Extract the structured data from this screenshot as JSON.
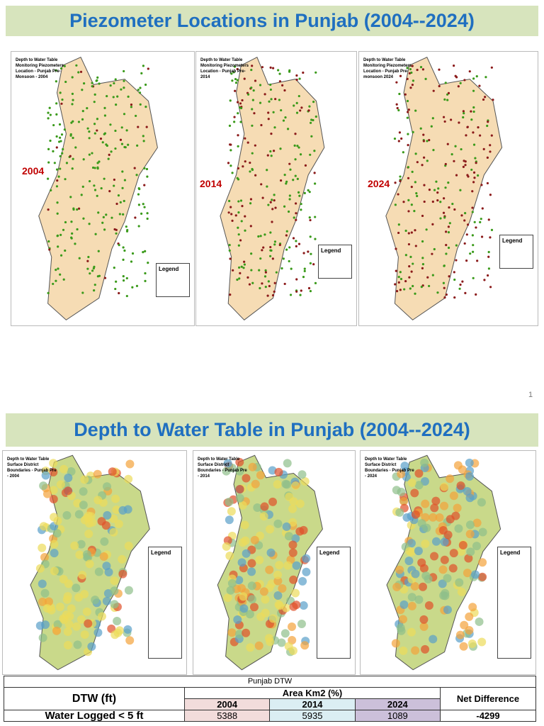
{
  "slide1": {
    "title": "Piezometer Locations in Punjab (2004--2024)",
    "page_number": "1",
    "maps": [
      {
        "title": "Depth to Water Table Monitoring Piezometers Location - Punjab Pre-Monsoon - 2004",
        "year": "2004",
        "legend": "Legend"
      },
      {
        "title": "Depth to Water Table Monitoring Piezometers Location - Punjab Pre-2014",
        "year": "2014",
        "legend": "Legend"
      },
      {
        "title": "Depth to Water Table Monitoring Piezometers Location - Punjab Pre-monsoon 2024",
        "year": "2024",
        "legend": "Legend"
      }
    ]
  },
  "slide2": {
    "title": "Depth to Water Table in Punjab (2004--2024)",
    "maps": [
      {
        "title": "Depth to Water Table Surface District Boundaries - Punjab Pre - 2004",
        "legend": "Legend"
      },
      {
        "title": "Depth to Water Table Surface District Boundaries - Punjab Pre - 2014",
        "legend": "Legend"
      },
      {
        "title": "Depth to Water Table Surface District Boundaries - Punjab Pre - 2024",
        "legend": "Legend"
      }
    ],
    "table": {
      "caption": "Punjab DTW",
      "row_header": "DTW (ft)",
      "group_header": "Area  Km2 (%)",
      "net_header": "Net Difference",
      "years": [
        "2004",
        "2014",
        "2024"
      ],
      "rows": [
        {
          "label": "Water Logged  < 5 ft",
          "values": [
            "5388",
            "5935",
            "1089"
          ],
          "net": "-4299"
        }
      ]
    }
  }
}
